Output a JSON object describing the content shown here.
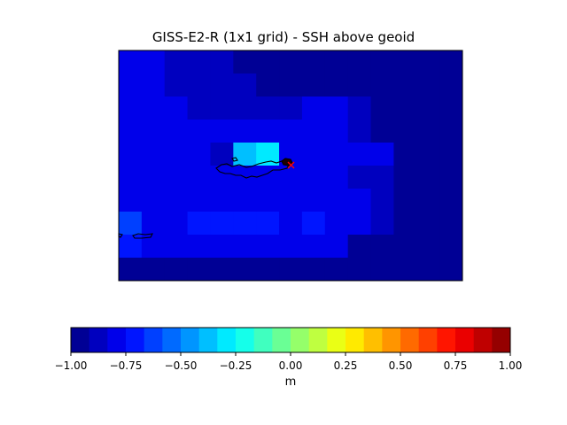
{
  "chart_data": {
    "type": "heatmap",
    "title": "GISS-E2-R (1x1 grid) - SSH above geoid",
    "colorbar": {
      "label": "m",
      "range": [
        -1.0,
        1.0
      ],
      "ticks": [
        "−1.00",
        "−0.75",
        "−0.50",
        "−0.25",
        "0.00",
        "0.25",
        "0.50",
        "0.75",
        "1.00"
      ],
      "tick_values": [
        -1.0,
        -0.75,
        -0.5,
        -0.25,
        0.0,
        0.25,
        0.5,
        0.75,
        1.0
      ],
      "levels": 24,
      "colormap": "jet"
    },
    "grid_rows": 10,
    "grid_cols": 15,
    "values": [
      [
        -0.8,
        -0.8,
        -0.85,
        -0.85,
        -0.9,
        -0.95,
        -1.0,
        -1.0,
        -1.0,
        -1.0,
        -1.0,
        -1.0,
        -1.0,
        -1.0,
        -1.0
      ],
      [
        -0.8,
        -0.8,
        -0.85,
        -0.85,
        -0.85,
        -0.9,
        -0.95,
        -1.0,
        -0.95,
        -0.95,
        -1.0,
        -1.0,
        -1.0,
        -1.0,
        -1.0
      ],
      [
        -0.8,
        -0.8,
        -0.8,
        -0.85,
        -0.85,
        -0.85,
        -0.85,
        -0.85,
        -0.8,
        -0.8,
        -0.85,
        -0.95,
        -1.0,
        -1.0,
        -1.0
      ],
      [
        -0.8,
        -0.8,
        -0.8,
        -0.8,
        -0.8,
        -0.8,
        -0.8,
        -0.8,
        -0.8,
        -0.8,
        -0.85,
        -1.0,
        -1.0,
        -1.0,
        -1.0
      ],
      [
        -0.8,
        -0.8,
        -0.8,
        -0.8,
        -0.85,
        -0.4,
        -0.3,
        -0.8,
        -0.8,
        -0.8,
        -0.8,
        -0.8,
        -1.0,
        -1.0,
        -1.0
      ],
      [
        -0.8,
        -0.8,
        -0.8,
        -0.8,
        -0.8,
        -0.8,
        -0.8,
        -0.8,
        -0.8,
        -0.8,
        -0.85,
        -0.9,
        -1.0,
        -1.0,
        -1.0
      ],
      [
        -0.8,
        -0.8,
        -0.8,
        -0.8,
        -0.8,
        -0.8,
        -0.8,
        -0.8,
        -0.8,
        -0.8,
        -0.8,
        -0.85,
        -1.0,
        -1.0,
        -1.0
      ],
      [
        -0.6,
        -0.8,
        -0.8,
        -0.7,
        -0.7,
        -0.7,
        -0.7,
        -0.8,
        -0.75,
        -0.8,
        -0.8,
        -0.85,
        -1.0,
        -1.0,
        -1.0
      ],
      [
        -0.75,
        -0.8,
        -0.8,
        -0.8,
        -0.8,
        -0.8,
        -0.8,
        -0.8,
        -0.8,
        -0.8,
        -1.0,
        -1.0,
        -1.0,
        -1.0,
        -1.0
      ],
      [
        -1.0,
        -1.0,
        -1.0,
        -1.0,
        -1.0,
        -1.0,
        -1.0,
        -1.0,
        -1.0,
        -1.0,
        -1.0,
        -1.0,
        -1.0,
        -1.0,
        -1.0
      ]
    ],
    "marker": {
      "symbol": "x",
      "color": "#ff0000"
    }
  }
}
